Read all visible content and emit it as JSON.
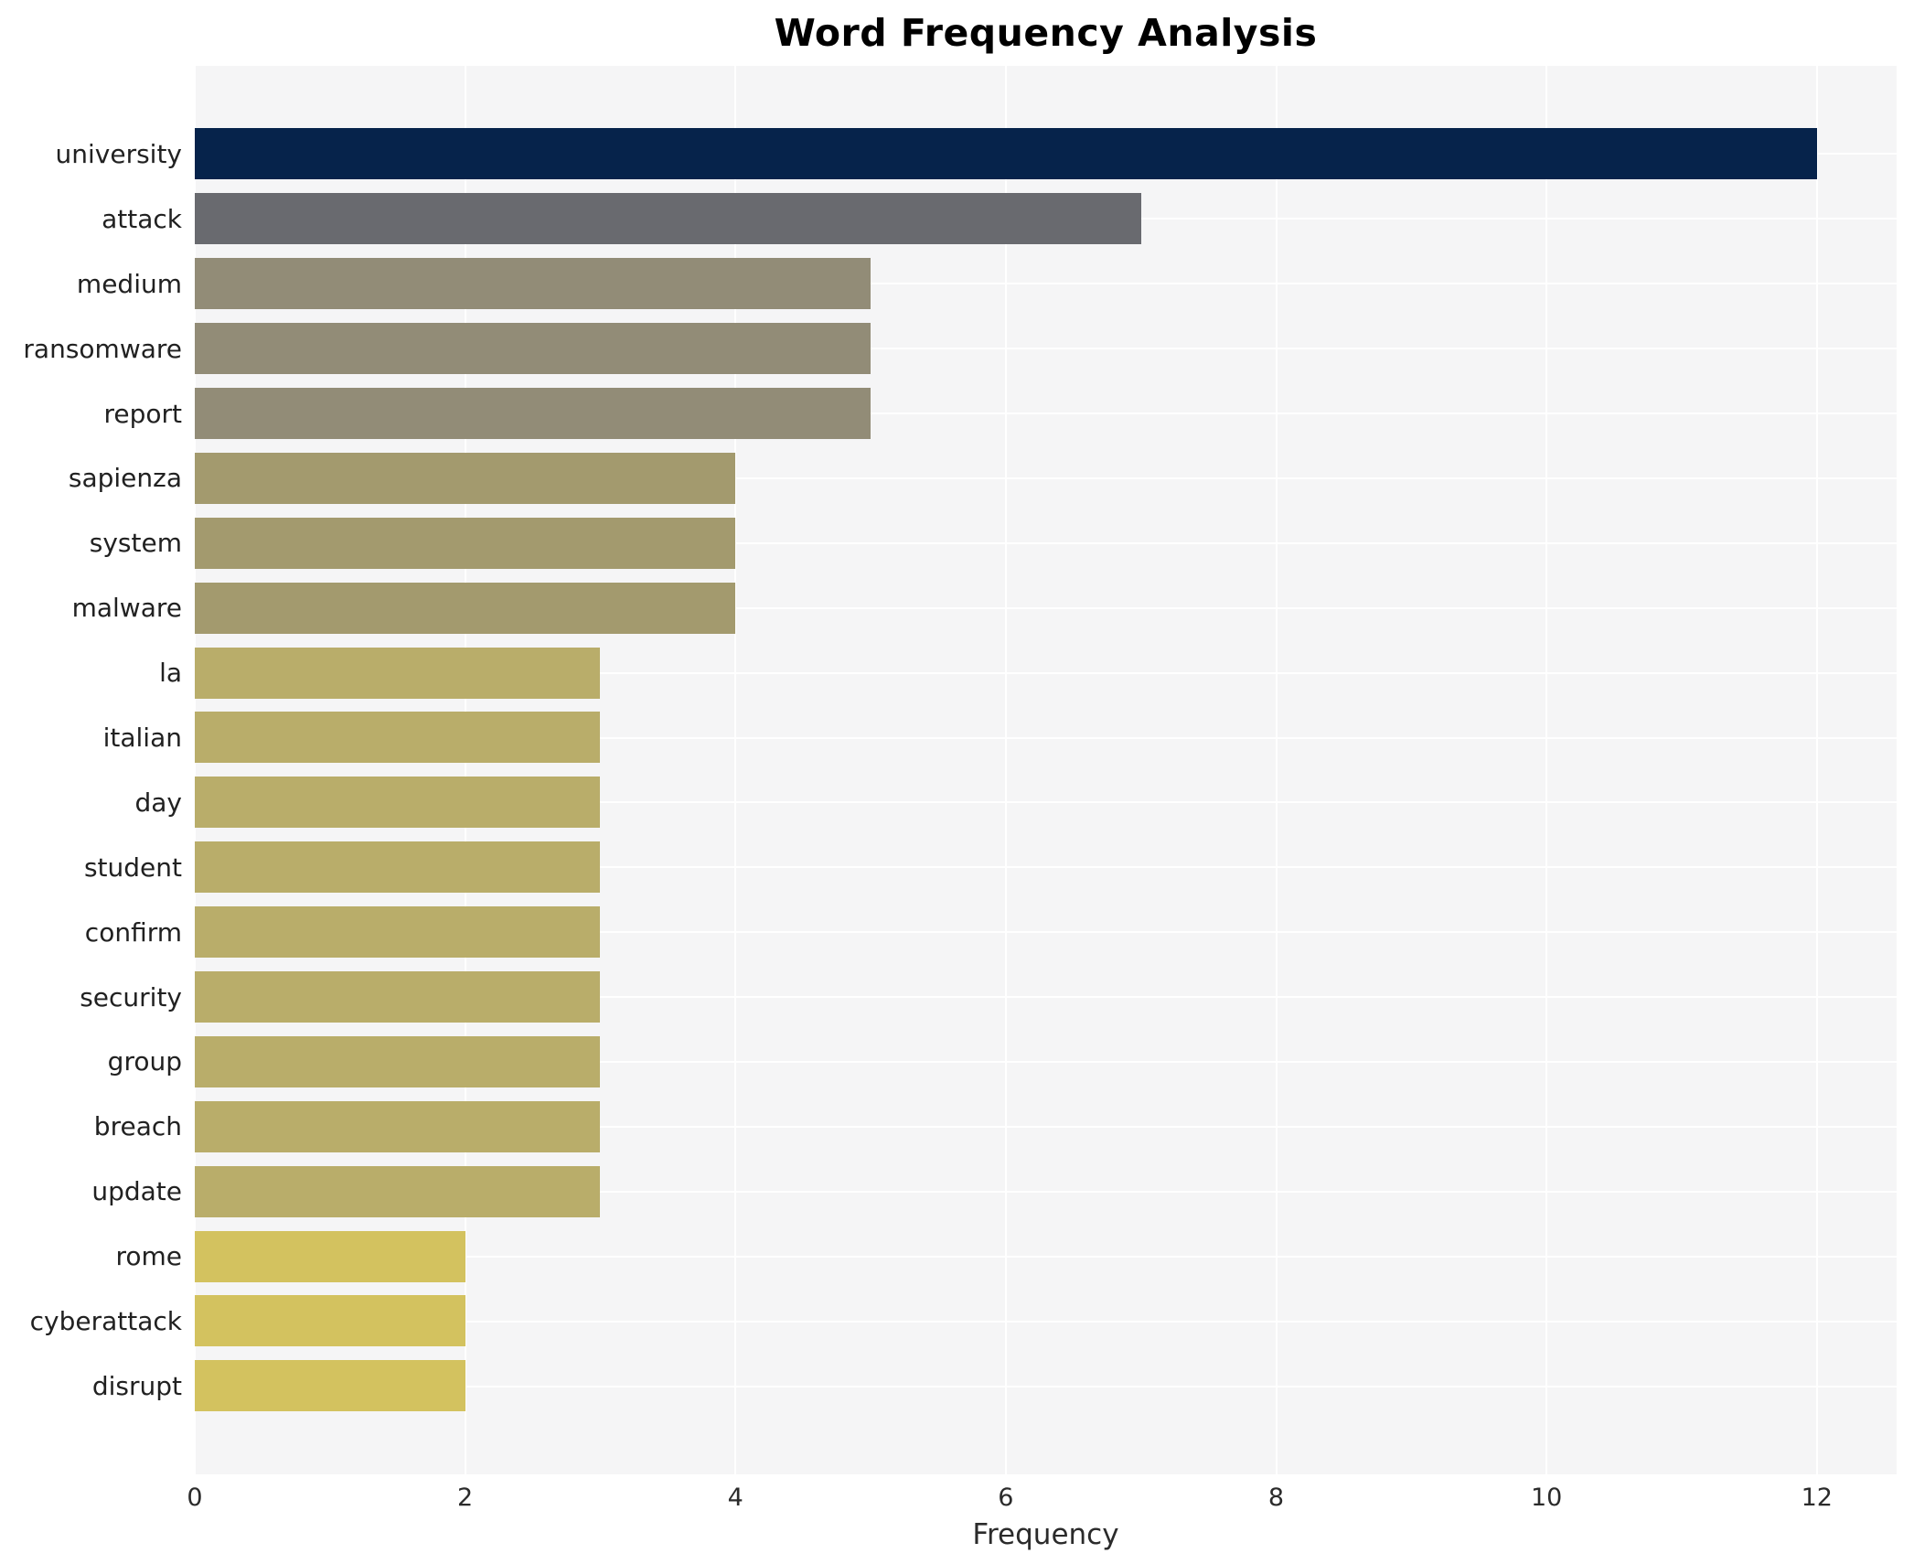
{
  "chart_data": {
    "type": "bar",
    "orientation": "horizontal",
    "title": "Word Frequency Analysis",
    "xlabel": "Frequency",
    "ylabel": "",
    "categories": [
      "university",
      "attack",
      "medium",
      "ransomware",
      "report",
      "sapienza",
      "system",
      "malware",
      "la",
      "italian",
      "day",
      "student",
      "confirm",
      "security",
      "group",
      "breach",
      "update",
      "rome",
      "cyberattack",
      "disrupt"
    ],
    "values": [
      12,
      7,
      5,
      5,
      5,
      4,
      4,
      4,
      3,
      3,
      3,
      3,
      3,
      3,
      3,
      3,
      3,
      2,
      2,
      2
    ],
    "bar_colors": [
      "#06234b",
      "#696a6f",
      "#928c77",
      "#928c77",
      "#928c77",
      "#a39a6e",
      "#a39a6e",
      "#a39a6e",
      "#b9ad6a",
      "#b9ad6a",
      "#b9ad6a",
      "#b9ad6a",
      "#b9ad6a",
      "#b9ad6a",
      "#b9ad6a",
      "#b9ad6a",
      "#b9ad6a",
      "#d3c25f",
      "#d3c25f",
      "#d3c25f"
    ],
    "xlim": [
      0,
      12.59
    ],
    "xticks": [
      0,
      2,
      4,
      6,
      8,
      10,
      12
    ],
    "grid": true,
    "legend": false,
    "plot_background": "#f5f5f6",
    "grid_color": "#ffffff",
    "page_background": "#ffffff"
  }
}
